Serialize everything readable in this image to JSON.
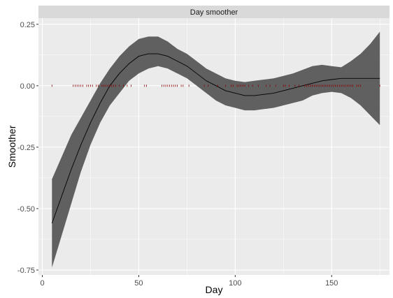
{
  "chart_data": {
    "type": "line",
    "facet_title": "Day smoother",
    "xlabel": "Day",
    "ylabel": "Smoother",
    "xlim": [
      -2,
      180
    ],
    "ylim": [
      -0.77,
      0.275
    ],
    "x_ticks": [
      0,
      50,
      100,
      150
    ],
    "y_ticks": [
      -0.75,
      -0.5,
      -0.25,
      0.0,
      0.25
    ],
    "y_tick_labels": [
      "-0.75",
      "-0.50",
      "-0.25",
      "0.00",
      "0.25"
    ],
    "grid": true,
    "colors": {
      "panel_background": "#ebebeb",
      "strip_background": "#d9d9d9",
      "grid": "#ffffff",
      "band": "#595959",
      "line": "#000000",
      "rug": "#8b0000"
    },
    "smooth": {
      "x": [
        5,
        10,
        15,
        20,
        25,
        30,
        35,
        40,
        45,
        50,
        55,
        60,
        65,
        70,
        75,
        80,
        85,
        90,
        95,
        100,
        105,
        110,
        115,
        120,
        125,
        130,
        135,
        140,
        145,
        150,
        155,
        160,
        165,
        170,
        175
      ],
      "y": [
        -0.56,
        -0.45,
        -0.34,
        -0.24,
        -0.15,
        -0.07,
        0.0,
        0.05,
        0.09,
        0.12,
        0.13,
        0.13,
        0.12,
        0.1,
        0.08,
        0.05,
        0.02,
        0.0,
        -0.02,
        -0.03,
        -0.04,
        -0.04,
        -0.035,
        -0.03,
        -0.02,
        -0.01,
        0.0,
        0.01,
        0.02,
        0.025,
        0.03,
        0.03,
        0.03,
        0.03,
        0.03
      ],
      "lower": [
        -0.74,
        -0.61,
        -0.48,
        -0.35,
        -0.24,
        -0.15,
        -0.08,
        -0.03,
        0.02,
        0.05,
        0.07,
        0.08,
        0.07,
        0.05,
        0.03,
        0.0,
        -0.03,
        -0.06,
        -0.08,
        -0.09,
        -0.1,
        -0.1,
        -0.095,
        -0.09,
        -0.08,
        -0.07,
        -0.06,
        -0.04,
        -0.03,
        -0.025,
        -0.03,
        -0.05,
        -0.08,
        -0.12,
        -0.16
      ],
      "upper": [
        -0.38,
        -0.29,
        -0.2,
        -0.13,
        -0.06,
        0.01,
        0.07,
        0.12,
        0.16,
        0.19,
        0.2,
        0.2,
        0.18,
        0.15,
        0.13,
        0.1,
        0.07,
        0.05,
        0.03,
        0.02,
        0.015,
        0.02,
        0.025,
        0.03,
        0.04,
        0.05,
        0.065,
        0.08,
        0.085,
        0.08,
        0.075,
        0.1,
        0.13,
        0.17,
        0.22
      ]
    },
    "rug_days": [
      5,
      16,
      17,
      18,
      19,
      20,
      21,
      23,
      24,
      25,
      26,
      28,
      29,
      31,
      32,
      33,
      34,
      35,
      36,
      37,
      38,
      40,
      42,
      44,
      46,
      53,
      54,
      62,
      63,
      64,
      65,
      66,
      67,
      68,
      69,
      70,
      72,
      73,
      76,
      84,
      86,
      91,
      95,
      98,
      99,
      101,
      102,
      103,
      104,
      105,
      107,
      109,
      112,
      116,
      118,
      121,
      125,
      126,
      128,
      131,
      133,
      136,
      137,
      138,
      139,
      140,
      141,
      142,
      143,
      144,
      145,
      146,
      147,
      148,
      149,
      150,
      151,
      152,
      153,
      154,
      155,
      156,
      157,
      158,
      159,
      160,
      161,
      163,
      164,
      165,
      175
    ]
  }
}
